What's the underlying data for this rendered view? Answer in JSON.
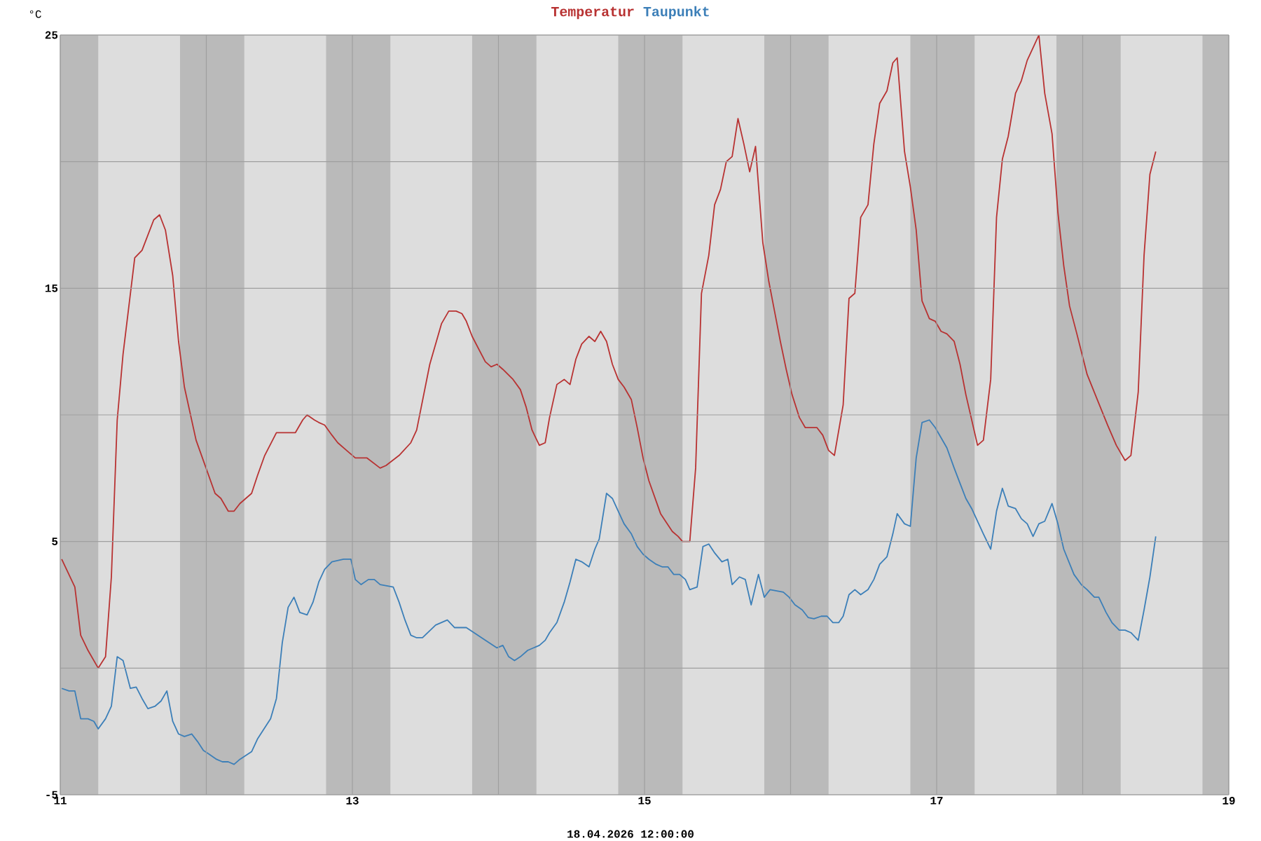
{
  "chart_data": {
    "type": "line",
    "ylabel": "°C",
    "legend": "top",
    "grid": true,
    "annotations": [
      "18.04.2026 12:00:00"
    ],
    "xlim": [
      11,
      19
    ],
    "xticks": [
      11,
      {
        "value": 12,
        "label": null
      },
      13,
      {
        "value": 14,
        "label": null
      },
      15,
      {
        "value": 16,
        "label": null
      },
      17,
      {
        "value": 18,
        "label": null
      },
      19
    ],
    "ylim": [
      -5,
      25
    ],
    "yticks": [
      -5,
      {
        "value": 0,
        "label": null
      },
      5,
      {
        "value": 10,
        "label": null
      },
      15,
      {
        "value": 20,
        "label": null
      },
      25
    ],
    "bands": [
      {
        "axis": "x",
        "from": 11,
        "to": 11.26,
        "color": "#bababa"
      },
      {
        "axis": "x",
        "from": 11.82,
        "to": 12.26,
        "color": "#bababa"
      },
      {
        "axis": "x",
        "from": 12.82,
        "to": 13.26,
        "color": "#bababa"
      },
      {
        "axis": "x",
        "from": 13.82,
        "to": 14.26,
        "color": "#bababa"
      },
      {
        "axis": "x",
        "from": 14.82,
        "to": 15.26,
        "color": "#bababa"
      },
      {
        "axis": "x",
        "from": 15.82,
        "to": 16.26,
        "color": "#bababa"
      },
      {
        "axis": "x",
        "from": 16.82,
        "to": 17.26,
        "color": "#bababa"
      },
      {
        "axis": "x",
        "from": 17.82,
        "to": 18.26,
        "color": "#bababa"
      },
      {
        "axis": "x",
        "from": 18.82,
        "to": 19,
        "color": "#bababa"
      }
    ],
    "series": [
      {
        "name": "Temperatur",
        "color": "#b83232",
        "x": [
          11.01,
          11.1,
          11.14,
          11.19,
          11.26,
          11.31,
          11.35,
          11.39,
          11.43,
          11.51,
          11.56,
          11.64,
          11.68,
          11.72,
          11.77,
          11.81,
          11.85,
          11.93,
          12.06,
          12.1,
          12.15,
          12.19,
          12.23,
          12.31,
          12.35,
          12.4,
          12.48,
          12.57,
          12.61,
          12.66,
          12.69,
          12.74,
          12.77,
          12.81,
          12.86,
          12.9,
          12.96,
          13.02,
          13.1,
          13.19,
          13.23,
          13.32,
          13.4,
          13.44,
          13.53,
          13.61,
          13.66,
          13.71,
          13.75,
          13.78,
          13.82,
          13.91,
          13.95,
          13.99,
          14.03,
          14.1,
          14.15,
          14.19,
          14.23,
          14.28,
          14.32,
          14.35,
          14.4,
          14.45,
          14.49,
          14.53,
          14.57,
          14.62,
          14.66,
          14.7,
          14.74,
          14.78,
          14.82,
          14.86,
          14.91,
          14.95,
          14.99,
          15.03,
          15.11,
          15.19,
          15.23,
          15.26,
          15.31,
          15.35,
          15.39,
          15.44,
          15.48,
          15.52,
          15.56,
          15.6,
          15.64,
          15.68,
          15.72,
          15.76,
          15.81,
          15.85,
          15.89,
          15.93,
          15.97,
          16.01,
          16.06,
          16.1,
          16.14,
          16.18,
          16.22,
          16.26,
          16.3,
          16.36,
          16.4,
          16.44,
          16.48,
          16.53,
          16.57,
          16.61,
          16.66,
          16.7,
          16.73,
          16.78,
          16.82,
          16.86,
          16.9,
          16.95,
          16.99,
          17.03,
          17.07,
          17.12,
          17.16,
          17.2,
          17.28,
          17.32,
          17.37,
          17.41,
          17.45,
          17.49,
          17.54,
          17.58,
          17.62,
          17.66,
          17.7,
          17.74,
          17.79,
          17.83,
          17.87,
          17.91,
          17.96,
          18.03,
          18.1,
          18.17,
          18.23,
          18.29,
          18.33,
          18.38,
          18.42,
          18.46,
          18.5
        ],
        "values": [
          4.3,
          3.2,
          1.3,
          0.7,
          0.0,
          0.45,
          3.6,
          9.8,
          12.4,
          16.2,
          16.5,
          17.7,
          17.9,
          17.3,
          15.5,
          12.9,
          11.1,
          9.0,
          6.9,
          6.7,
          6.2,
          6.2,
          6.5,
          6.9,
          7.6,
          8.4,
          9.3,
          9.3,
          9.3,
          9.8,
          10.0,
          9.8,
          9.7,
          9.6,
          9.2,
          8.9,
          8.6,
          8.3,
          8.3,
          7.9,
          8.0,
          8.4,
          8.9,
          9.4,
          12.0,
          13.6,
          14.1,
          14.1,
          14.0,
          13.7,
          13.1,
          12.1,
          11.9,
          12.0,
          11.8,
          11.4,
          11.0,
          10.3,
          9.4,
          8.8,
          8.9,
          9.9,
          11.2,
          11.4,
          11.2,
          12.2,
          12.8,
          13.1,
          12.9,
          13.3,
          12.9,
          12.0,
          11.4,
          11.1,
          10.6,
          9.5,
          8.3,
          7.4,
          6.1,
          5.4,
          5.2,
          5.0,
          5.0,
          7.9,
          14.8,
          16.3,
          18.3,
          18.9,
          20.0,
          20.2,
          21.7,
          20.7,
          19.6,
          20.6,
          16.8,
          15.3,
          14.1,
          12.9,
          11.8,
          10.8,
          9.9,
          9.5,
          9.5,
          9.5,
          9.2,
          8.6,
          8.4,
          10.4,
          14.6,
          14.8,
          17.8,
          18.3,
          20.7,
          22.3,
          22.8,
          23.9,
          24.1,
          20.4,
          19.0,
          17.3,
          14.5,
          13.8,
          13.7,
          13.3,
          13.2,
          12.9,
          12.0,
          10.8,
          8.8,
          9.0,
          11.4,
          17.8,
          20.1,
          21.0,
          22.7,
          23.2,
          24.0,
          24.5,
          25.0,
          22.7,
          21.1,
          18.0,
          15.9,
          14.3,
          13.2,
          11.6,
          10.6,
          9.6,
          8.8,
          8.2,
          8.4,
          10.9,
          16.3,
          19.5,
          20.4
        ]
      },
      {
        "name": "Taupunkt",
        "color": "#3c7fb8",
        "x": [
          11.01,
          11.06,
          11.1,
          11.14,
          11.19,
          11.23,
          11.26,
          11.31,
          11.35,
          11.39,
          11.43,
          11.48,
          11.52,
          11.56,
          11.6,
          11.65,
          11.69,
          11.73,
          11.77,
          11.81,
          11.85,
          11.9,
          11.94,
          11.98,
          12.02,
          12.07,
          12.11,
          12.15,
          12.19,
          12.23,
          12.31,
          12.35,
          12.44,
          12.48,
          12.52,
          12.56,
          12.6,
          12.64,
          12.69,
          12.73,
          12.77,
          12.81,
          12.86,
          12.94,
          12.99,
          13.02,
          13.06,
          13.11,
          13.15,
          13.19,
          13.28,
          13.32,
          13.36,
          13.4,
          13.44,
          13.48,
          13.57,
          13.65,
          13.7,
          13.78,
          13.91,
          13.99,
          14.03,
          14.07,
          14.11,
          14.15,
          14.2,
          14.28,
          14.32,
          14.35,
          14.4,
          14.45,
          14.49,
          14.53,
          14.57,
          14.62,
          14.66,
          14.69,
          14.74,
          14.78,
          14.82,
          14.86,
          14.91,
          14.95,
          14.99,
          15.03,
          15.08,
          15.12,
          15.16,
          15.2,
          15.24,
          15.28,
          15.31,
          15.36,
          15.4,
          15.44,
          15.48,
          15.53,
          15.57,
          15.6,
          15.65,
          15.69,
          15.73,
          15.78,
          15.82,
          15.86,
          15.95,
          15.99,
          16.03,
          16.08,
          16.12,
          16.16,
          16.21,
          16.25,
          16.29,
          16.33,
          16.36,
          16.4,
          16.44,
          16.48,
          16.53,
          16.57,
          16.61,
          16.66,
          16.7,
          16.73,
          16.78,
          16.82,
          16.86,
          16.9,
          16.95,
          16.99,
          17.03,
          17.07,
          17.12,
          17.16,
          17.2,
          17.24,
          17.32,
          17.37,
          17.41,
          17.45,
          17.49,
          17.54,
          17.58,
          17.62,
          17.66,
          17.7,
          17.74,
          17.79,
          17.83,
          17.87,
          17.94,
          17.99,
          18.03,
          18.08,
          18.11,
          18.16,
          18.2,
          18.25,
          18.29,
          18.33,
          18.38,
          18.42,
          18.46,
          18.5
        ],
        "values": [
          -0.8,
          -0.9,
          -0.9,
          -2.0,
          -2.0,
          -2.1,
          -2.4,
          -2.0,
          -1.5,
          0.45,
          0.3,
          -0.8,
          -0.75,
          -1.2,
          -1.6,
          -1.5,
          -1.3,
          -0.9,
          -2.1,
          -2.6,
          -2.7,
          -2.6,
          -2.9,
          -3.25,
          -3.4,
          -3.6,
          -3.7,
          -3.7,
          -3.8,
          -3.6,
          -3.3,
          -2.8,
          -2.0,
          -1.2,
          1.0,
          2.4,
          2.8,
          2.2,
          2.1,
          2.6,
          3.4,
          3.9,
          4.2,
          4.3,
          4.3,
          3.5,
          3.3,
          3.5,
          3.5,
          3.3,
          3.2,
          2.6,
          1.9,
          1.3,
          1.2,
          1.2,
          1.7,
          1.9,
          1.6,
          1.6,
          1.1,
          0.8,
          0.9,
          0.45,
          0.3,
          0.45,
          0.7,
          0.9,
          1.1,
          1.4,
          1.8,
          2.6,
          3.4,
          4.3,
          4.2,
          4.0,
          4.7,
          5.1,
          6.9,
          6.7,
          6.2,
          5.7,
          5.3,
          4.8,
          4.5,
          4.3,
          4.1,
          4.0,
          4.0,
          3.7,
          3.7,
          3.5,
          3.1,
          3.2,
          4.8,
          4.9,
          4.55,
          4.2,
          4.3,
          3.3,
          3.6,
          3.5,
          2.5,
          3.7,
          2.8,
          3.1,
          3.0,
          2.8,
          2.5,
          2.3,
          2.0,
          1.95,
          2.05,
          2.05,
          1.8,
          1.8,
          2.05,
          2.9,
          3.1,
          2.9,
          3.1,
          3.5,
          4.1,
          4.4,
          5.3,
          6.1,
          5.7,
          5.6,
          8.3,
          9.7,
          9.8,
          9.5,
          9.1,
          8.7,
          7.9,
          7.3,
          6.7,
          6.3,
          5.3,
          4.7,
          6.2,
          7.1,
          6.4,
          6.3,
          5.9,
          5.7,
          5.2,
          5.7,
          5.8,
          6.5,
          5.7,
          4.7,
          3.7,
          3.3,
          3.1,
          2.8,
          2.8,
          2.2,
          1.8,
          1.5,
          1.5,
          1.4,
          1.1,
          2.3,
          3.6,
          5.2
        ]
      }
    ]
  }
}
